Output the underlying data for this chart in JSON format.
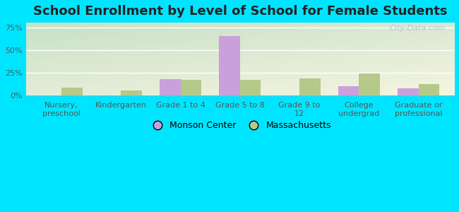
{
  "title": "School Enrollment by Level of School for Female Students",
  "categories": [
    "Nursery,\npreschool",
    "Kindergarten",
    "Grade 1 to 4",
    "Grade 5 to 8",
    "Grade 9 to\n12",
    "College\nundergrad",
    "Graduate or\nprofessional"
  ],
  "monson_values": [
    0,
    0,
    18,
    65,
    0,
    10,
    8
  ],
  "mass_values": [
    9,
    6,
    17,
    17,
    19,
    24,
    13
  ],
  "monson_color": "#c9a0dc",
  "mass_color": "#b5c98a",
  "bar_width": 0.35,
  "ylim": [
    0,
    80
  ],
  "yticks": [
    0,
    25,
    50,
    75
  ],
  "ytick_labels": [
    "0%",
    "25%",
    "50%",
    "75%"
  ],
  "legend_labels": [
    "Monson Center",
    "Massachusetts"
  ],
  "bg_outer": "#00e5ff",
  "bg_plot_topleft": "#c8e0c8",
  "bg_plot_bottomright": "#f5f5e0",
  "watermark": "City-Data.com",
  "title_fontsize": 13,
  "tick_fontsize": 8,
  "legend_fontsize": 9,
  "grid_color": "#ffffff"
}
